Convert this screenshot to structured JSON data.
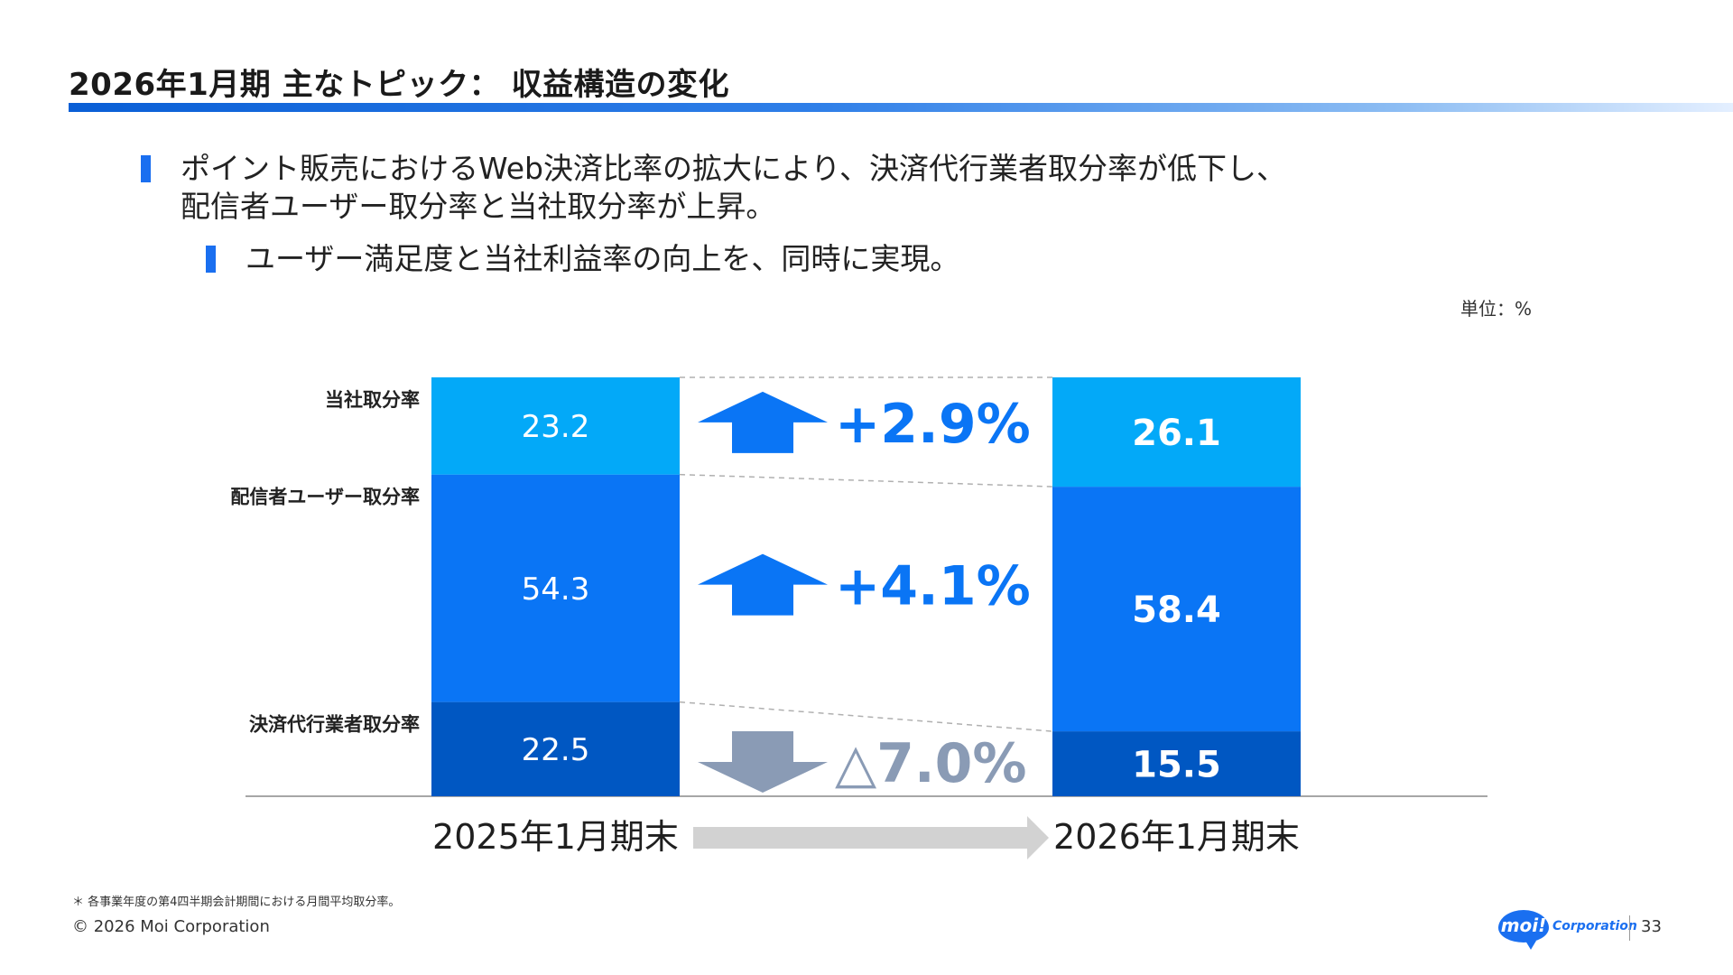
{
  "title": "2026年1月期 主なトピック： 収益構造の変化",
  "bullets": {
    "main_line1": "ポイント販売におけるWeb決済比率の拡大により、決済代行業者取分率が低下し、",
    "main_line2": "配信者ユーザー取分率と当社取分率が上昇。",
    "sub": "ユーザー満足度と当社利益率の向上を、同時に実現。"
  },
  "unit_label": "単位：%",
  "chart_data": {
    "type": "bar",
    "stacked": true,
    "categories": [
      "2025年1月期末",
      "2026年1月期末"
    ],
    "series": [
      {
        "name": "決済代行業者取分率",
        "values": [
          22.5,
          15.5
        ]
      },
      {
        "name": "配信者ユーザー取分率",
        "values": [
          54.3,
          58.4
        ]
      },
      {
        "name": "当社取分率",
        "values": [
          23.2,
          26.1
        ]
      }
    ],
    "changes": [
      {
        "series": "当社取分率",
        "label": "+2.9%",
        "direction": "up"
      },
      {
        "series": "配信者ユーザー取分率",
        "label": "+4.1%",
        "direction": "up"
      },
      {
        "series": "決済代行業者取分率",
        "label": "△7.0%",
        "direction": "down"
      }
    ],
    "ylim": [
      0,
      100
    ],
    "colors": {
      "決済代行業者取分率": "#0057c2",
      "配信者ユーザー取分率": "#0a75f5",
      "当社取分率": "#03a9f8",
      "up_arrow": "#0a75f5",
      "down_arrow": "#8a9bb5",
      "down_text": "#8a9bb5",
      "up_text": "#0a75f5"
    }
  },
  "footnote": "＊ 各事業年度の第4四半期会計期間における月間平均取分率。",
  "copyright": "© 2026 Moi Corporation",
  "logo": {
    "badge": "moi!",
    "text": "Corporation",
    "icon": "moi-logo-icon"
  },
  "page_number": "33"
}
